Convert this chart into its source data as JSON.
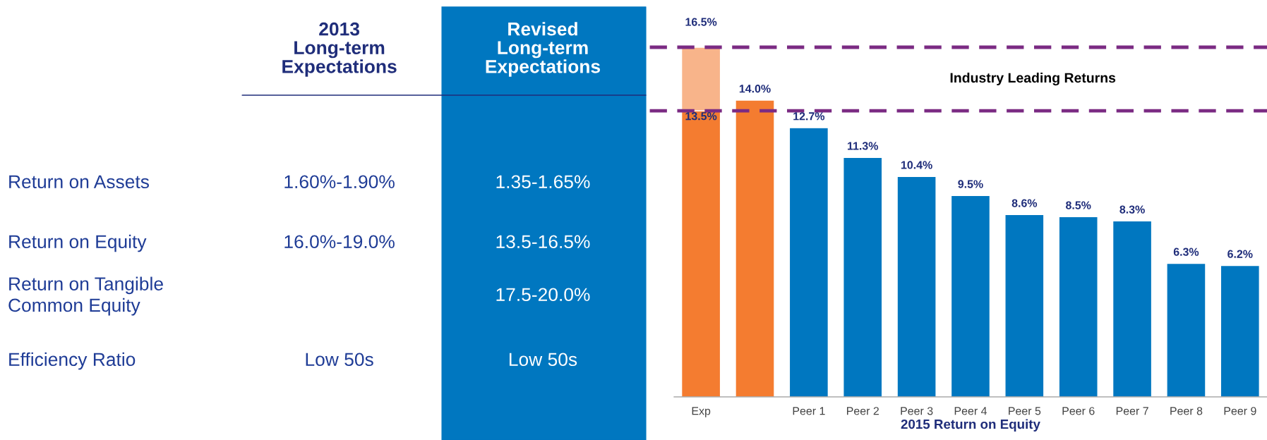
{
  "chart_data": [
    {
      "type": "other",
      "categories": [
        "2013\nLong-term\nExpectations",
        "Revised\nLong-term\nExpectations"
      ],
      "y_categories": [
        "Return on Assets",
        "Return on Equity",
        "Return on Tangible\nCommon Equity",
        "Efficiency Ratio"
      ],
      "cell_labels": [
        [
          "1.60%-1.90%",
          "1.35-1.65%"
        ],
        [
          "16.0%-19.0%",
          "13.5-16.5%"
        ],
        [
          null,
          "17.5-20.0%"
        ],
        [
          "Low 50s",
          "Low 50s"
        ]
      ]
    },
    {
      "type": "bar",
      "stacked": true,
      "xlabel": "2015 Return on Equity",
      "categories": [
        "Exp",
        null,
        "Peer 1",
        "Peer 2",
        "Peer 3",
        "Peer 4",
        "Peer 5",
        "Peer 6",
        "Peer 7",
        "Peer 8",
        "Peer 9"
      ],
      "series": [
        {
          "colors": [
            "#f47c30",
            "#f47c30",
            "#0077c0",
            "#0077c0",
            "#0077c0",
            "#0077c0",
            "#0077c0",
            "#0077c0",
            "#0077c0",
            "#0077c0",
            "#0077c0"
          ],
          "values": [
            13.5,
            14.0,
            12.7,
            11.3,
            10.4,
            9.5,
            8.6,
            8.5,
            8.3,
            6.3,
            6.2
          ],
          "value_labels": [
            "13.5%",
            "14.0%",
            "12.7%",
            "11.3%",
            "10.4%",
            "9.5%",
            "8.6%",
            "8.5%",
            "8.3%",
            "6.3%",
            "6.2%"
          ]
        },
        {
          "color": "#f8b48a",
          "values": [
            3.0,
            null,
            null,
            null,
            null,
            null,
            null,
            null,
            null,
            null,
            null
          ]
        }
      ],
      "totals": [
        "16.5%",
        null,
        null,
        null,
        null,
        null,
        null,
        null,
        null,
        null,
        null
      ],
      "ref_lines": [
        {
          "axis": "y",
          "value": 16.5,
          "color": "#7b2b83",
          "line_style": "dashed"
        },
        {
          "axis": "y",
          "value": 13.5,
          "color": "#7b2b83",
          "line_style": "dashed"
        }
      ],
      "annotations": [
        "Industry Leading Returns"
      ],
      "grid": false,
      "legend": false,
      "tick_labels": "x"
    }
  ]
}
